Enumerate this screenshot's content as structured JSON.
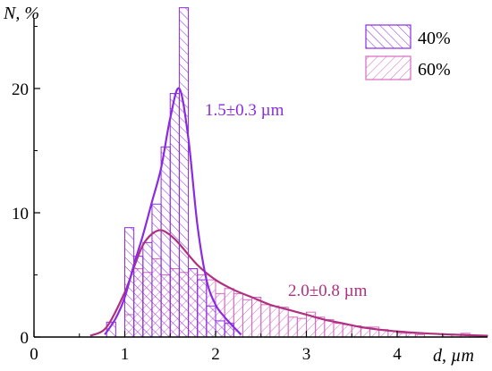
{
  "chart_data": {
    "type": "bar",
    "xlabel": "d, µm",
    "ylabel": "N, %",
    "xlim": [
      0,
      5
    ],
    "ylim": [
      0,
      26
    ],
    "x_ticks": [
      "0",
      "1",
      "2",
      "3",
      "4"
    ],
    "y_ticks": [
      "0",
      "10",
      "20"
    ],
    "legend_position": "top-right",
    "series": [
      {
        "name": "40%",
        "color": "#8a2be2",
        "hatch": "backward-diagonal",
        "bin_width": 0.1,
        "bins": [
          {
            "x": 0.8,
            "y": 1.2
          },
          {
            "x": 1.0,
            "y": 8.8
          },
          {
            "x": 1.1,
            "y": 6.5
          },
          {
            "x": 1.2,
            "y": 7.6
          },
          {
            "x": 1.3,
            "y": 10.7
          },
          {
            "x": 1.4,
            "y": 15.3
          },
          {
            "x": 1.5,
            "y": 19.6
          },
          {
            "x": 1.6,
            "y": 26.5
          },
          {
            "x": 1.7,
            "y": 5.5
          },
          {
            "x": 1.8,
            "y": 4.6
          },
          {
            "x": 1.9,
            "y": 2.5
          },
          {
            "x": 2.0,
            "y": 1.3
          },
          {
            "x": 2.1,
            "y": 1.1
          }
        ],
        "fit_label": "1.5±0.3 µm",
        "fit_curve": [
          [
            0.78,
            0.2
          ],
          [
            0.9,
            1.5
          ],
          [
            1.0,
            3.2
          ],
          [
            1.1,
            5.8
          ],
          [
            1.2,
            8.2
          ],
          [
            1.3,
            10.9
          ],
          [
            1.4,
            13.6
          ],
          [
            1.5,
            17.6
          ],
          [
            1.6,
            20.0
          ],
          [
            1.7,
            16.0
          ],
          [
            1.8,
            9.0
          ],
          [
            1.9,
            4.6
          ],
          [
            2.0,
            2.6
          ],
          [
            2.1,
            1.6
          ],
          [
            2.2,
            0.8
          ],
          [
            2.28,
            0.2
          ]
        ]
      },
      {
        "name": "60%",
        "color": "#d46ac3",
        "hatch": "forward-diagonal",
        "bin_width": 0.1,
        "bins": [
          {
            "x": 1.0,
            "y": 1.8
          },
          {
            "x": 1.1,
            "y": 5.5
          },
          {
            "x": 1.2,
            "y": 5.2
          },
          {
            "x": 1.3,
            "y": 6.3
          },
          {
            "x": 1.4,
            "y": 5.0
          },
          {
            "x": 1.5,
            "y": 5.5
          },
          {
            "x": 1.6,
            "y": 5.2
          },
          {
            "x": 1.7,
            "y": 5.5
          },
          {
            "x": 1.8,
            "y": 5.0
          },
          {
            "x": 1.9,
            "y": 4.6
          },
          {
            "x": 2.0,
            "y": 3.5
          },
          {
            "x": 2.1,
            "y": 3.9
          },
          {
            "x": 2.2,
            "y": 3.5
          },
          {
            "x": 2.3,
            "y": 3.0
          },
          {
            "x": 2.4,
            "y": 3.2
          },
          {
            "x": 2.5,
            "y": 2.6
          },
          {
            "x": 2.6,
            "y": 2.5
          },
          {
            "x": 2.7,
            "y": 2.4
          },
          {
            "x": 2.8,
            "y": 1.6
          },
          {
            "x": 2.9,
            "y": 1.5
          },
          {
            "x": 3.0,
            "y": 2.0
          },
          {
            "x": 3.1,
            "y": 1.6
          },
          {
            "x": 3.2,
            "y": 1.4
          },
          {
            "x": 3.3,
            "y": 1.1
          },
          {
            "x": 3.4,
            "y": 1.0
          },
          {
            "x": 3.5,
            "y": 0.9
          },
          {
            "x": 3.6,
            "y": 0.8
          },
          {
            "x": 3.7,
            "y": 0.8
          },
          {
            "x": 3.8,
            "y": 0.6
          },
          {
            "x": 3.9,
            "y": 0.5
          },
          {
            "x": 4.0,
            "y": 0.3
          },
          {
            "x": 4.1,
            "y": 0.3
          },
          {
            "x": 4.2,
            "y": 0.2
          },
          {
            "x": 4.5,
            "y": 0.2
          },
          {
            "x": 4.7,
            "y": 0.3
          }
        ],
        "fit_label": "2.0±0.8 µm",
        "fit_curve": [
          [
            0.62,
            0.1
          ],
          [
            0.8,
            0.8
          ],
          [
            1.0,
            3.6
          ],
          [
            1.1,
            5.6
          ],
          [
            1.2,
            7.4
          ],
          [
            1.3,
            8.3
          ],
          [
            1.4,
            8.6
          ],
          [
            1.5,
            8.2
          ],
          [
            1.6,
            7.5
          ],
          [
            1.8,
            5.8
          ],
          [
            2.0,
            4.6
          ],
          [
            2.2,
            3.8
          ],
          [
            2.4,
            3.2
          ],
          [
            2.6,
            2.6
          ],
          [
            2.8,
            2.2
          ],
          [
            3.0,
            1.8
          ],
          [
            3.2,
            1.4
          ],
          [
            3.4,
            1.1
          ],
          [
            3.6,
            0.8
          ],
          [
            3.8,
            0.6
          ],
          [
            4.0,
            0.45
          ],
          [
            4.3,
            0.3
          ],
          [
            4.6,
            0.2
          ],
          [
            5.0,
            0.1
          ]
        ]
      }
    ]
  }
}
